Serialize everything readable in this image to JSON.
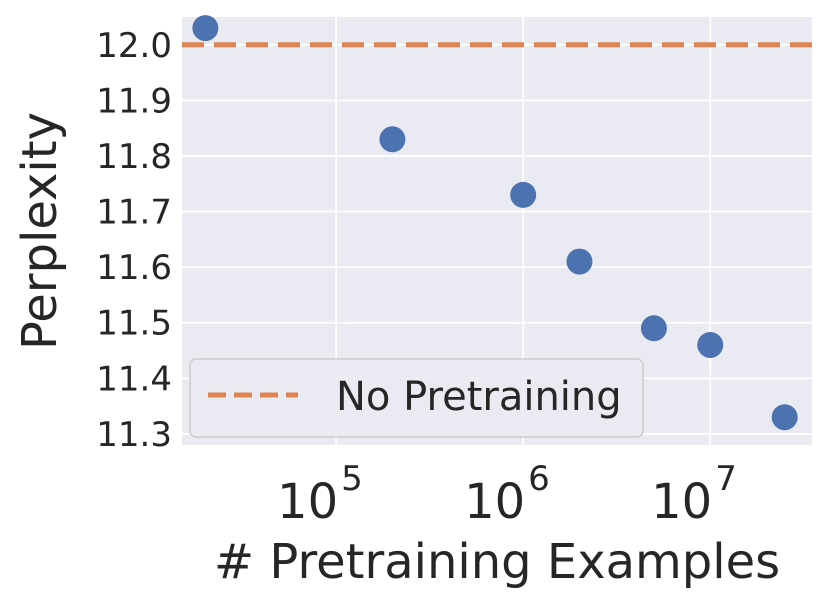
{
  "chart_data": {
    "type": "scatter",
    "title": "",
    "xlabel": "# Pretraining Examples",
    "ylabel": "Perplexity",
    "x_scale": "log",
    "grid": true,
    "legend_position": "lower-left",
    "ylim": [
      11.28,
      12.05
    ],
    "xlim": [
      15000,
      35000000
    ],
    "x_ticks": [
      {
        "value": 100000,
        "base": "10",
        "exp": "5"
      },
      {
        "value": 1000000,
        "base": "10",
        "exp": "6"
      },
      {
        "value": 10000000,
        "base": "10",
        "exp": "7"
      }
    ],
    "y_ticks": [
      "11.3",
      "11.4",
      "11.5",
      "11.6",
      "11.7",
      "11.8",
      "11.9",
      "12.0"
    ],
    "series": [
      {
        "type": "scatter",
        "color": "#4C72B0",
        "points": [
          {
            "x": 20000,
            "y": 12.03
          },
          {
            "x": 200000,
            "y": 11.83
          },
          {
            "x": 1000000,
            "y": 11.73
          },
          {
            "x": 2000000,
            "y": 11.61
          },
          {
            "x": 5000000,
            "y": 11.49
          },
          {
            "x": 10000000,
            "y": 11.46
          },
          {
            "x": 25000000,
            "y": 11.33
          }
        ]
      },
      {
        "type": "hline",
        "name": "No Pretraining",
        "y": 12.0,
        "color": "#DD8452",
        "style": "dashed"
      }
    ]
  },
  "colors": {
    "plot_background": "#EAEAF2",
    "grid": "#FFFFFF",
    "text": "#262626"
  }
}
